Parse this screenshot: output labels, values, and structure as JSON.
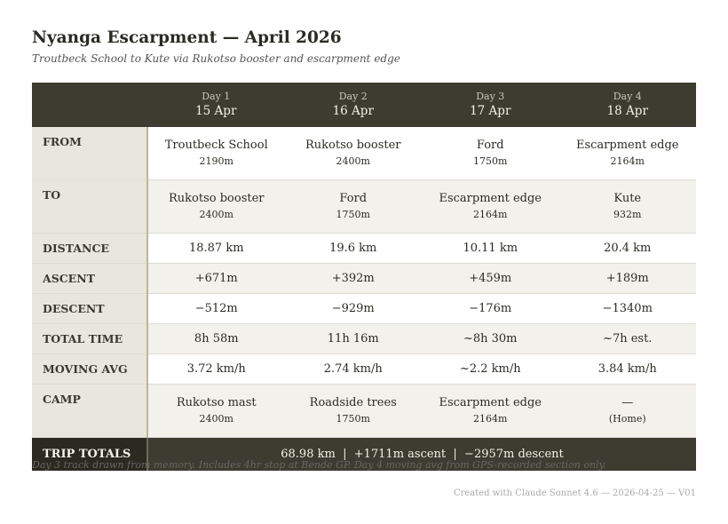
{
  "title": "Nyanga Escarpment — April 2026",
  "subtitle": "Troutbeck School to Kute via Rukotso booster and escarpment edge",
  "days": [
    {
      "day": "Day 1",
      "date": "15 Apr"
    },
    {
      "day": "Day 2",
      "date": "16 Apr"
    },
    {
      "day": "Day 3",
      "date": "17 Apr"
    },
    {
      "day": "Day 4",
      "date": "18 Apr"
    }
  ],
  "rows": [
    {
      "label": "FROM",
      "cells": [
        {
          "main": "Troutbeck School",
          "sub": "2190m"
        },
        {
          "main": "Rukotso booster",
          "sub": "2400m"
        },
        {
          "main": "Ford",
          "sub": "1750m"
        },
        {
          "main": "Escarpment edge",
          "sub": "2164m"
        }
      ]
    },
    {
      "label": "TO",
      "cells": [
        {
          "main": "Rukotso booster",
          "sub": "2400m"
        },
        {
          "main": "Ford",
          "sub": "1750m"
        },
        {
          "main": "Escarpment edge",
          "sub": "2164m"
        },
        {
          "main": "Kute",
          "sub": "932m"
        }
      ]
    },
    {
      "label": "DISTANCE",
      "cells": [
        {
          "main": "18.87 km"
        },
        {
          "main": "19.6 km"
        },
        {
          "main": "10.11 km"
        },
        {
          "main": "20.4 km"
        }
      ]
    },
    {
      "label": "ASCENT",
      "cells": [
        {
          "main": "+671m"
        },
        {
          "main": "+392m"
        },
        {
          "main": "+459m"
        },
        {
          "main": "+189m"
        }
      ]
    },
    {
      "label": "DESCENT",
      "cells": [
        {
          "main": "−512m"
        },
        {
          "main": "−929m"
        },
        {
          "main": "−176m"
        },
        {
          "main": "−1340m"
        }
      ]
    },
    {
      "label": "TOTAL TIME",
      "cells": [
        {
          "main": "8h 58m"
        },
        {
          "main": "11h 16m"
        },
        {
          "main": "~8h 30m"
        },
        {
          "main": "~7h est."
        }
      ]
    },
    {
      "label": "MOVING AVG",
      "cells": [
        {
          "main": "3.72 km/h"
        },
        {
          "main": "2.74 km/h"
        },
        {
          "main": "~2.2 km/h"
        },
        {
          "main": "3.84 km/h"
        }
      ]
    },
    {
      "label": "CAMP",
      "cells": [
        {
          "main": "Rukotso mast",
          "sub": "2400m"
        },
        {
          "main": "Roadside trees",
          "sub": "1750m"
        },
        {
          "main": "Escarpment edge",
          "sub": "2164m"
        },
        {
          "main": "—",
          "sub": "(Home)"
        }
      ]
    }
  ],
  "totals": {
    "label": "TRIP TOTALS",
    "value": "68.98 km  |  +1711m ascent  |  −2957m descent"
  },
  "note": "Day 3 track drawn from memory. Includes 4hr stop at Bende GP. Day 4 moving avg from GPS-recorded section only.",
  "credit": "Created with Claude Sonnet 4.6 — 2026-04-25 — V01"
}
